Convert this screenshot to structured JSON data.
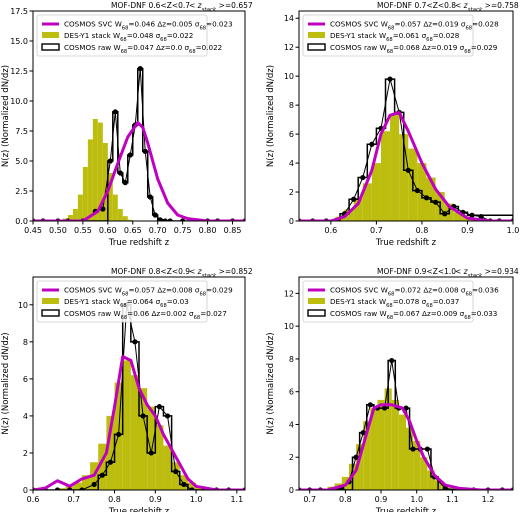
{
  "figure": {
    "ylabel": "N(z) (Normalized dN/dz)",
    "xlabel": "True redshift z"
  },
  "colors": {
    "svc": "#c000c0",
    "des": "#bdbd10",
    "raw": "#000000"
  },
  "chart_data": [
    {
      "type": "bar",
      "title_left": "MOF-DNF 0.6<Z<0.7",
      "title_right": "< z_stack >=0.657",
      "xlim": [
        0.45,
        0.875
      ],
      "ylim": [
        0,
        17.5
      ],
      "xticks": [
        "0.45",
        "0.50",
        "0.55",
        "0.60",
        "0.65",
        "0.70",
        "0.75",
        "0.80",
        "0.85"
      ],
      "yticks": [
        "0.0",
        "2.5",
        "5.0",
        "7.5",
        "10.0",
        "12.5",
        "15.0",
        "17.5"
      ],
      "legend": [
        {
          "label": "COSMOS SVC W68=0.046 Δz=0.005 σ68=0.023"
        },
        {
          "label": "DES-Y1 stack W68=0.048 σ68=0.022"
        },
        {
          "label": "COSMOS raw W68=0.047 Δz=0.0 σ68=0.022"
        }
      ],
      "des_stack": {
        "x0": 0.45,
        "dx": 0.01,
        "values": [
          0,
          0,
          0,
          0,
          0,
          0.1,
          0.2,
          0.5,
          1.0,
          2.2,
          4.5,
          6.8,
          8.5,
          8.2,
          6.5,
          4.0,
          2.2,
          1.0,
          0.4,
          0.1,
          0,
          0,
          0,
          0,
          0,
          0,
          0,
          0,
          0,
          0,
          0,
          0,
          0,
          0,
          0,
          0,
          0,
          0,
          0,
          0,
          0,
          0
        ]
      },
      "cosmos_raw": {
        "edges": [
          0.45,
          0.6,
          0.61,
          0.62,
          0.63,
          0.64,
          0.65,
          0.66,
          0.67,
          0.68,
          0.69,
          0.7,
          0.71,
          0.72,
          0.73,
          0.875
        ],
        "heights": [
          0,
          5.0,
          9.1,
          4.0,
          3.2,
          5.5,
          8.0,
          12.7,
          5.8,
          2.0,
          0.5,
          0.1,
          0,
          0,
          0
        ]
      },
      "cosmos_raw_points": {
        "x": [
          0.45,
          0.47,
          0.5,
          0.52,
          0.55,
          0.575,
          0.59,
          0.605,
          0.615,
          0.625,
          0.635,
          0.645,
          0.655,
          0.665,
          0.675,
          0.685,
          0.695,
          0.705,
          0.715,
          0.725,
          0.75,
          0.77,
          0.8,
          0.82,
          0.85,
          0.875
        ],
        "y": [
          0,
          0,
          0,
          0,
          0,
          0.8,
          1.0,
          5.0,
          9.1,
          4.0,
          3.2,
          5.5,
          8.0,
          12.7,
          5.8,
          2.0,
          0.5,
          0.1,
          0,
          0,
          0,
          0,
          0,
          0,
          0,
          0
        ]
      },
      "cosmos_svc": {
        "x": [
          0.45,
          0.5,
          0.55,
          0.58,
          0.6,
          0.62,
          0.64,
          0.66,
          0.67,
          0.68,
          0.7,
          0.72,
          0.74,
          0.76,
          0.8,
          0.875
        ],
        "y": [
          0,
          0,
          0,
          0.8,
          2.5,
          4.8,
          7.0,
          8.2,
          7.8,
          6.5,
          3.5,
          1.5,
          0.5,
          0.2,
          0,
          0
        ]
      }
    },
    {
      "type": "bar",
      "title_left": "MOF-DNF 0.7<Z<0.8",
      "title_right": "< z_stack >=0.758",
      "xlim": [
        0.53,
        1.0
      ],
      "ylim": [
        0,
        14.5
      ],
      "xticks": [
        "0.6",
        "0.7",
        "0.8",
        "0.9",
        "1.0"
      ],
      "yticks": [
        "0",
        "2",
        "4",
        "6",
        "8",
        "10",
        "12",
        "14"
      ],
      "legend": [
        {
          "label": "COSMOS SVC W68=0.057 Δz=0.019 σ68=0.028"
        },
        {
          "label": "DES-Y1 stack W68=0.061 σ68=0.028"
        },
        {
          "label": "COSMOS raw W68=0.068 Δz=0.019 σ68=0.029"
        }
      ],
      "des_stack": {
        "x0": 0.53,
        "dx": 0.02,
        "values": [
          0,
          0,
          0,
          0.1,
          0.3,
          0.8,
          1.6,
          2.6,
          4.0,
          6.2,
          7.4,
          6.0,
          5.0,
          4.0,
          3.0,
          2.0,
          1.2,
          0.6,
          0.3,
          0.1,
          0,
          0,
          0,
          0
        ]
      },
      "cosmos_raw": {
        "edges": [
          0.53,
          0.62,
          0.64,
          0.66,
          0.68,
          0.7,
          0.72,
          0.74,
          0.76,
          0.78,
          0.8,
          0.82,
          0.84,
          0.86,
          0.88,
          0.9,
          1.0
        ],
        "heights": [
          0,
          0.5,
          1.5,
          3.0,
          5.3,
          6.4,
          9.8,
          7.5,
          3.5,
          2.1,
          1.6,
          1.3,
          0.5,
          1.0,
          0.6,
          0.4
        ]
      },
      "cosmos_raw_points": {
        "x": [
          0.53,
          0.56,
          0.59,
          0.61,
          0.63,
          0.65,
          0.67,
          0.69,
          0.71,
          0.73,
          0.75,
          0.77,
          0.79,
          0.81,
          0.83,
          0.85,
          0.87,
          0.89,
          0.91,
          0.93,
          0.95,
          0.97,
          1.0
        ],
        "y": [
          0,
          0,
          0,
          0,
          0.5,
          1.5,
          3.0,
          5.3,
          6.4,
          9.8,
          7.5,
          3.5,
          2.1,
          1.6,
          1.3,
          0.5,
          1.0,
          0.6,
          0.4,
          0.3,
          0,
          0,
          0
        ]
      },
      "cosmos_svc": {
        "x": [
          0.53,
          0.6,
          0.63,
          0.66,
          0.69,
          0.71,
          0.73,
          0.75,
          0.77,
          0.8,
          0.83,
          0.86,
          0.9,
          0.95,
          1.0
        ],
        "y": [
          0,
          0,
          0.3,
          1.2,
          3.5,
          6.0,
          7.3,
          7.5,
          6.2,
          4.0,
          2.2,
          1.0,
          0.2,
          0,
          0
        ]
      }
    },
    {
      "type": "bar",
      "title_left": "MOF-DNF 0.8<Z<0.9",
      "title_right": "< z_stack >=0.852",
      "xlim": [
        0.6,
        1.12
      ],
      "ylim": [
        0,
        11.5
      ],
      "xticks": [
        "0.6",
        "0.7",
        "0.8",
        "0.9",
        "1.0",
        "1.1"
      ],
      "yticks": [
        "0",
        "2",
        "4",
        "6",
        "8",
        "10"
      ],
      "legend": [
        {
          "label": "COSMOS SVC W68=0.057 Δz=0.008 σ68=0.029"
        },
        {
          "label": "DES-Y1 stack W68=0.064 σ68=0.03"
        },
        {
          "label": "COSMOS raw W68=0.06 Δz=0.002 σ68=0.027"
        }
      ],
      "des_stack": {
        "x0": 0.6,
        "dx": 0.02,
        "values": [
          0,
          0,
          0,
          0.1,
          0.2,
          0.4,
          0.8,
          1.5,
          2.5,
          4.0,
          5.8,
          7.0,
          6.2,
          5.5,
          4.5,
          3.5,
          2.4,
          1.5,
          0.8,
          0.4,
          0.2,
          0.1,
          0,
          0,
          0,
          0
        ]
      },
      "cosmos_raw": {
        "edges": [
          0.6,
          0.76,
          0.78,
          0.8,
          0.82,
          0.84,
          0.86,
          0.88,
          0.9,
          0.92,
          0.94,
          0.96,
          0.98,
          1.12
        ],
        "heights": [
          0,
          0.8,
          1.5,
          3.0,
          10.0,
          8.0,
          4.0,
          2.0,
          4.5,
          4.0,
          1.0,
          0.3,
          0
        ]
      },
      "cosmos_raw_points": {
        "x": [
          0.6,
          0.63,
          0.66,
          0.69,
          0.72,
          0.75,
          0.77,
          0.79,
          0.81,
          0.83,
          0.85,
          0.87,
          0.89,
          0.91,
          0.93,
          0.95,
          0.97,
          0.99,
          1.02,
          1.05,
          1.08,
          1.12
        ],
        "y": [
          0,
          0,
          0,
          0,
          0,
          0.3,
          0.8,
          1.5,
          3.0,
          10.0,
          8.0,
          4.0,
          2.0,
          4.5,
          4.0,
          1.0,
          0.3,
          0,
          0,
          0,
          0,
          0
        ]
      },
      "cosmos_svc": {
        "x": [
          0.6,
          0.63,
          0.66,
          0.69,
          0.72,
          0.75,
          0.78,
          0.8,
          0.82,
          0.84,
          0.86,
          0.88,
          0.9,
          0.92,
          0.95,
          0.98,
          1.0,
          1.05,
          1.12
        ],
        "y": [
          0,
          0.1,
          0.5,
          0.2,
          0.6,
          0.8,
          2.0,
          4.5,
          7.2,
          7.0,
          5.5,
          4.6,
          4.0,
          3.0,
          1.8,
          0.6,
          0.2,
          0,
          0
        ]
      }
    },
    {
      "type": "bar",
      "title_left": "MOF-DNF 0.9<Z<1.0",
      "title_right": "< z_stack >=0.934",
      "xlim": [
        0.67,
        1.27
      ],
      "ylim": [
        0,
        13
      ],
      "xticks": [
        "0.7",
        "0.8",
        "0.9",
        "1.0",
        "1.1",
        "1.2"
      ],
      "yticks": [
        "0",
        "2",
        "4",
        "6",
        "8",
        "10",
        "12"
      ],
      "legend": [
        {
          "label": "COSMOS SVC W68=0.072 Δz=0.008 σ68=0.036"
        },
        {
          "label": "DES-Y1 stack W68=0.078 σ68=0.037"
        },
        {
          "label": "COSMOS raw W68=0.067 Δz=0.009 σ68=0.033"
        }
      ],
      "des_stack": {
        "x0": 0.67,
        "dx": 0.02,
        "values": [
          0,
          0,
          0,
          0,
          0.2,
          0.4,
          0.8,
          1.6,
          2.8,
          4.2,
          5.0,
          5.5,
          6.2,
          5.5,
          4.6,
          3.8,
          3.0,
          2.0,
          1.2,
          0.6,
          0.3,
          0.1,
          0,
          0,
          0,
          0,
          0,
          0,
          0,
          0
        ]
      },
      "cosmos_raw": {
        "edges": [
          0.67,
          0.82,
          0.84,
          0.86,
          0.88,
          0.9,
          0.92,
          0.94,
          0.96,
          0.98,
          1.0,
          1.02,
          1.04,
          1.06,
          1.27
        ],
        "heights": [
          0,
          2.0,
          3.5,
          5.2,
          5.0,
          5.0,
          7.9,
          5.0,
          5.0,
          2.5,
          2.5,
          2.5,
          0.8,
          0
        ]
      },
      "cosmos_raw_points": {
        "x": [
          0.67,
          0.7,
          0.73,
          0.76,
          0.79,
          0.81,
          0.83,
          0.85,
          0.87,
          0.89,
          0.91,
          0.93,
          0.95,
          0.97,
          0.99,
          1.01,
          1.03,
          1.05,
          1.08,
          1.12,
          1.16,
          1.2,
          1.24,
          1.27
        ],
        "y": [
          0,
          0,
          0,
          0,
          0.1,
          0.5,
          2.0,
          3.5,
          5.2,
          5.0,
          5.0,
          7.9,
          5.0,
          5.0,
          2.5,
          2.5,
          2.5,
          0.8,
          0.1,
          0,
          0,
          0,
          0,
          0
        ]
      },
      "cosmos_svc": {
        "x": [
          0.67,
          0.75,
          0.8,
          0.83,
          0.86,
          0.88,
          0.9,
          0.93,
          0.96,
          0.98,
          1.0,
          1.02,
          1.05,
          1.08,
          1.12,
          1.18,
          1.27
        ],
        "y": [
          0,
          0,
          0.3,
          1.2,
          3.5,
          5.0,
          5.2,
          5.2,
          5.0,
          4.2,
          3.0,
          2.0,
          0.9,
          0.3,
          0.1,
          0,
          0
        ]
      }
    }
  ]
}
